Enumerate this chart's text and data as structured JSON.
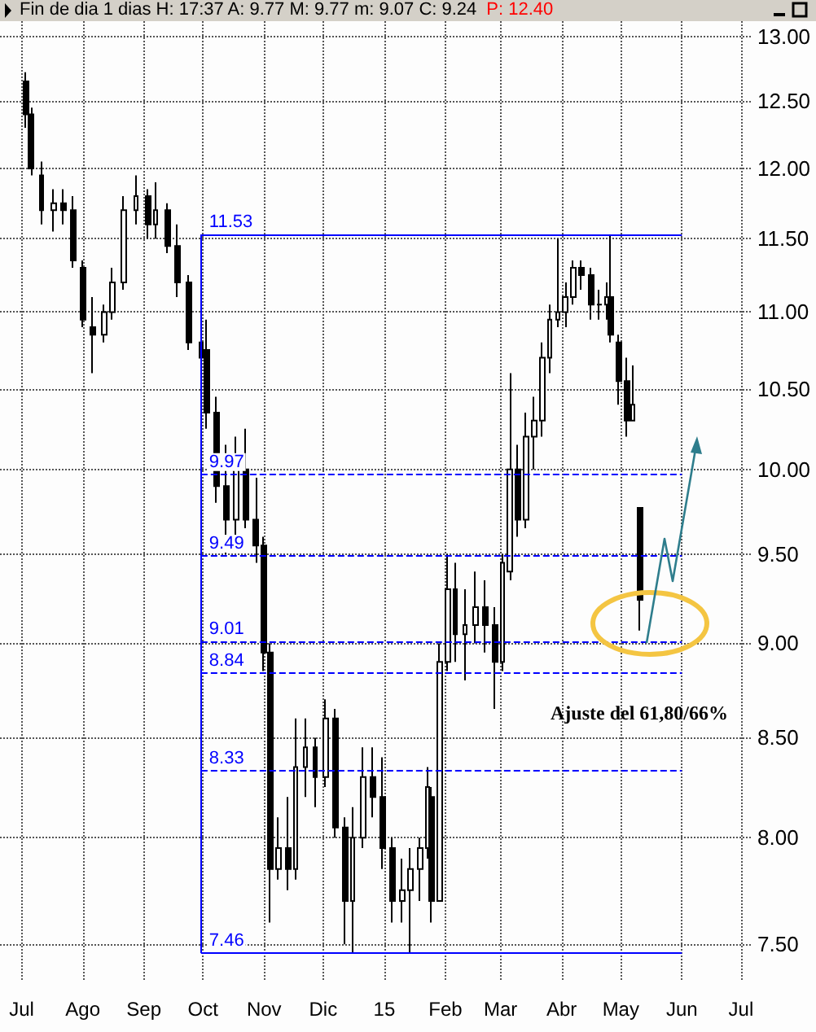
{
  "chart_data": {
    "type": "candlestick",
    "title": "Fin de dia 1 dias  H: 17:37  A: 9.77  M: 9.77  m: 9.07  C: 9.24",
    "subtitle": "P: 12.40",
    "color": "#000000",
    "x": [
      "2014-07-03",
      "2014-07-06",
      "2014-07-11",
      "2014-07-17",
      "2014-07-22",
      "2014-07-27",
      "2014-08-01",
      "2014-08-06",
      "2014-08-12",
      "2014-08-16",
      "2014-08-22",
      "2014-08-28",
      "2014-09-03",
      "2014-09-07",
      "2014-09-13",
      "2014-09-18",
      "2014-09-24",
      "2014-09-30",
      "2014-10-03",
      "2014-10-08",
      "2014-10-13",
      "2014-10-18",
      "2014-10-23",
      "2014-10-28",
      "2014-11-01",
      "2014-11-04",
      "2014-11-08",
      "2014-11-13",
      "2014-11-17",
      "2014-11-22",
      "2014-11-27",
      "2014-12-02",
      "2014-12-07",
      "2014-12-12",
      "2014-12-16",
      "2014-12-21",
      "2014-12-26",
      "2014-12-31",
      "2015-01-05",
      "2015-01-10",
      "2015-01-14",
      "2015-01-19",
      "2015-01-23",
      "2015-01-25",
      "2015-01-29",
      "2015-02-02",
      "2015-02-06",
      "2015-02-11",
      "2015-02-16",
      "2015-02-21",
      "2015-02-26",
      "2015-03-02",
      "2015-03-06",
      "2015-03-10",
      "2015-03-14",
      "2015-03-18",
      "2015-03-22",
      "2015-03-26",
      "2015-03-30",
      "2015-04-03",
      "2015-04-07",
      "2015-04-11",
      "2015-04-16",
      "2015-04-20",
      "2015-04-24",
      "2015-04-26",
      "2015-04-30",
      "2015-05-04",
      "2015-05-07",
      "2015-05-11"
    ],
    "ohlc": [
      [
        12.65,
        12.72,
        12.3,
        12.4
      ],
      [
        12.4,
        12.45,
        11.95,
        12.0
      ],
      [
        11.95,
        12.05,
        11.6,
        11.7
      ],
      [
        11.7,
        11.85,
        11.55,
        11.75
      ],
      [
        11.75,
        11.85,
        11.6,
        11.7
      ],
      [
        11.7,
        11.8,
        11.3,
        11.35
      ],
      [
        11.3,
        11.35,
        10.9,
        10.95
      ],
      [
        10.9,
        11.1,
        10.6,
        10.85
      ],
      [
        10.85,
        11.05,
        10.8,
        11.0
      ],
      [
        11.0,
        11.3,
        10.95,
        11.2
      ],
      [
        11.2,
        11.8,
        11.15,
        11.7
      ],
      [
        11.7,
        11.95,
        11.6,
        11.8
      ],
      [
        11.8,
        11.85,
        11.5,
        11.6
      ],
      [
        11.6,
        11.9,
        11.5,
        11.7
      ],
      [
        11.7,
        11.75,
        11.4,
        11.45
      ],
      [
        11.45,
        11.6,
        11.1,
        11.2
      ],
      [
        11.2,
        11.25,
        10.75,
        10.8
      ],
      [
        10.8,
        11.5,
        10.5,
        10.7
      ],
      [
        10.75,
        10.95,
        10.25,
        10.35
      ],
      [
        10.35,
        10.45,
        9.8,
        9.9
      ],
      [
        9.9,
        10.15,
        9.5,
        9.7
      ],
      [
        9.7,
        10.2,
        9.6,
        10.0
      ],
      [
        10.0,
        10.25,
        9.65,
        9.7
      ],
      [
        9.7,
        9.95,
        9.45,
        9.55
      ],
      [
        9.55,
        9.6,
        8.85,
        8.95
      ],
      [
        8.95,
        9.0,
        7.6,
        7.85
      ],
      [
        7.85,
        8.1,
        7.8,
        7.95
      ],
      [
        7.95,
        8.2,
        7.75,
        7.85
      ],
      [
        7.85,
        8.6,
        7.8,
        8.35
      ],
      [
        8.35,
        8.6,
        8.2,
        8.45
      ],
      [
        8.45,
        8.5,
        8.15,
        8.3
      ],
      [
        8.3,
        8.7,
        8.25,
        8.6
      ],
      [
        8.6,
        8.65,
        8.0,
        8.05
      ],
      [
        8.05,
        8.1,
        7.5,
        7.7
      ],
      [
        7.7,
        8.15,
        7.46,
        8.0
      ],
      [
        8.0,
        8.45,
        7.95,
        8.3
      ],
      [
        8.3,
        8.45,
        8.1,
        8.2
      ],
      [
        8.2,
        8.4,
        7.85,
        7.95
      ],
      [
        7.95,
        8.0,
        7.6,
        7.7
      ],
      [
        7.7,
        7.9,
        7.6,
        7.75
      ],
      [
        7.75,
        7.95,
        7.46,
        7.85
      ],
      [
        7.85,
        8.0,
        7.7,
        7.95
      ],
      [
        7.95,
        8.35,
        7.9,
        8.25
      ],
      [
        8.2,
        8.25,
        7.6,
        7.7
      ],
      [
        7.7,
        9.0,
        7.7,
        8.9
      ],
      [
        8.9,
        9.5,
        8.85,
        9.3
      ],
      [
        9.3,
        9.45,
        8.9,
        9.05
      ],
      [
        9.05,
        9.3,
        8.8,
        9.1
      ],
      [
        9.1,
        9.4,
        9.0,
        9.2
      ],
      [
        9.2,
        9.35,
        8.95,
        9.1
      ],
      [
        9.1,
        9.2,
        8.65,
        8.9
      ],
      [
        8.9,
        9.5,
        8.85,
        9.45
      ],
      [
        9.4,
        10.6,
        9.35,
        10.0
      ],
      [
        10.0,
        10.15,
        9.6,
        9.7
      ],
      [
        9.7,
        10.35,
        9.65,
        10.2
      ],
      [
        10.2,
        10.45,
        10.0,
        10.3
      ],
      [
        10.3,
        10.8,
        10.2,
        10.7
      ],
      [
        10.7,
        11.05,
        10.6,
        10.95
      ],
      [
        10.95,
        11.5,
        10.9,
        11.0
      ],
      [
        11.0,
        11.2,
        10.9,
        11.1
      ],
      [
        11.1,
        11.35,
        11.05,
        11.3
      ],
      [
        11.3,
        11.35,
        11.15,
        11.25
      ],
      [
        11.25,
        11.3,
        10.95,
        11.05
      ],
      [
        11.05,
        11.15,
        10.95,
        11.05
      ],
      [
        11.05,
        11.2,
        10.95,
        11.1
      ],
      [
        11.1,
        11.53,
        10.8,
        10.85
      ],
      [
        10.8,
        10.85,
        10.4,
        10.55
      ],
      [
        10.55,
        10.7,
        10.2,
        10.3
      ],
      [
        10.3,
        10.65,
        10.3,
        10.4
      ],
      [
        9.77,
        9.77,
        9.07,
        9.24
      ]
    ],
    "xlim": [
      "2014-06-20",
      "2015-07-06"
    ],
    "xticks": [
      {
        "value": "2014-07-01",
        "label": "Jul"
      },
      {
        "value": "2014-08-01",
        "label": "Ago"
      },
      {
        "value": "2014-09-01",
        "label": "Sep"
      },
      {
        "value": "2014-10-01",
        "label": "Oct"
      },
      {
        "value": "2014-11-01",
        "label": "Nov"
      },
      {
        "value": "2014-12-01",
        "label": "Dic"
      },
      {
        "value": "2015-01-01",
        "label": "15"
      },
      {
        "value": "2015-02-01",
        "label": "Feb"
      },
      {
        "value": "2015-03-01",
        "label": "Mar"
      },
      {
        "value": "2015-04-01",
        "label": "Abr"
      },
      {
        "value": "2015-05-01",
        "label": "May"
      },
      {
        "value": "2015-06-01",
        "label": "Jun"
      },
      {
        "value": "2015-07-01",
        "label": "Jul"
      }
    ],
    "ylim": [
      7.34,
      13.12
    ],
    "yticks": [
      {
        "value": 7.5,
        "label": "7.50"
      },
      {
        "value": 8,
        "label": "8.00"
      },
      {
        "value": 8.5,
        "label": "8.50"
      },
      {
        "value": 9,
        "label": "9.00"
      },
      {
        "value": 9.5,
        "label": "9.50"
      },
      {
        "value": 10,
        "label": "10.00"
      },
      {
        "value": 10.5,
        "label": "10.50"
      },
      {
        "value": 11,
        "label": "11.00"
      },
      {
        "value": 11.5,
        "label": "11.50"
      },
      {
        "value": 12,
        "label": "12.00"
      },
      {
        "value": 12.5,
        "label": "12.50"
      },
      {
        "value": 13,
        "label": "13.00"
      }
    ],
    "log": true,
    "grid": true,
    "ref_lines": [
      {
        "axis": "x",
        "value": "2014-09-30",
        "color": "#0000ff",
        "line_style": "solid"
      },
      {
        "axis": "y",
        "value": 11.53,
        "label": "11.53",
        "color": "#0000ff",
        "line_style": "solid"
      },
      {
        "axis": "y",
        "value": 9.97,
        "label": "9.97",
        "color": "#0000ff",
        "line_style": "dashed"
      },
      {
        "axis": "y",
        "value": 9.49,
        "label": "9.49",
        "color": "#0000ff",
        "line_style": "dashed"
      },
      {
        "axis": "y",
        "value": 9.01,
        "label": "9.01",
        "color": "#0000ff",
        "line_style": "dashed"
      },
      {
        "axis": "y",
        "value": 8.84,
        "label": "8.84",
        "color": "#0000ff",
        "line_style": "dashed"
      },
      {
        "axis": "y",
        "value": 8.33,
        "label": "8.33",
        "color": "#0000ff",
        "line_style": "dashed"
      },
      {
        "axis": "y",
        "value": 7.46,
        "label": "7.46",
        "color": "#0000ff",
        "line_style": "solid"
      }
    ],
    "annotations": [
      "Ajuste del 61,80/66%"
    ]
  }
}
